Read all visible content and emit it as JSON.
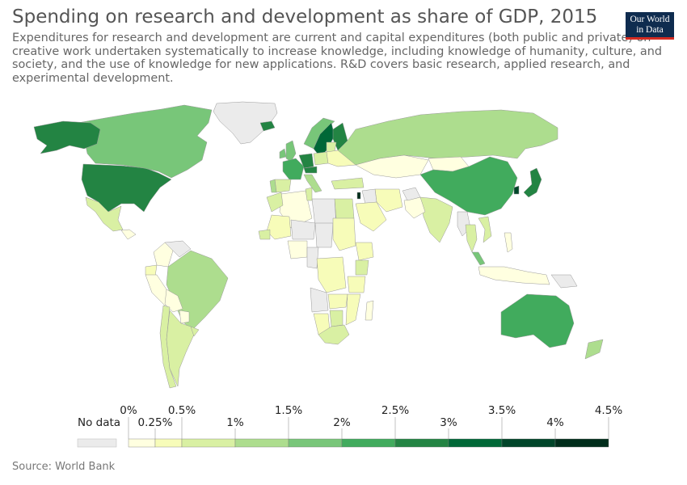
{
  "title": "Spending on research and development as share of GDP, 2015",
  "subtitle": "Expenditures for research and development are current and capital expenditures (both public and private) on creative work undertaken systematically to increase knowledge, including knowledge of humanity, culture, and society, and the use of knowledge for new applications. R&D covers basic research, applied research, and experimental development.",
  "logo": {
    "line1": "Our World",
    "line2": "in Data"
  },
  "source": "Source: World Bank",
  "colors": {
    "no_data": "#ebebeb",
    "scale": [
      "#ffffe0",
      "#f7fcb9",
      "#d9f0a3",
      "#addd8e",
      "#78c679",
      "#41ab5d",
      "#238443",
      "#006837",
      "#004529",
      "#002d1b"
    ],
    "borders": "#999999"
  },
  "legend": {
    "no_data_label": "No data",
    "breaks_top": [
      "0%",
      "0.5%",
      "1.5%",
      "2.5%",
      "3.5%",
      "4.5%"
    ],
    "breaks_bottom": [
      "0.25%",
      "1%",
      "2%",
      "3%",
      "4%"
    ],
    "bins": [
      "0–0.25%",
      "0.25–0.5%",
      "0.5–1%",
      "1–1.5%",
      "1.5–2%",
      "2–2.5%",
      "2.5–3%",
      "3–3.5%",
      "3.5–4%",
      "4–4.5%"
    ]
  },
  "chart_data": {
    "type": "choropleth",
    "variable": "R&D expenditure (% of GDP)",
    "year": 2015,
    "bin_edges": [
      0,
      0.25,
      0.5,
      1,
      1.5,
      2,
      2.5,
      3,
      3.5,
      4,
      4.5
    ],
    "regions": [
      {
        "name": "United States",
        "bin": 6
      },
      {
        "name": "Canada",
        "bin": 4
      },
      {
        "name": "Alaska (USA)",
        "bin": 6
      },
      {
        "name": "Greenland",
        "bin": -1
      },
      {
        "name": "Mexico",
        "bin": 2
      },
      {
        "name": "Guatemala",
        "bin": 0
      },
      {
        "name": "Colombia",
        "bin": 0
      },
      {
        "name": "Venezuela",
        "bin": -1
      },
      {
        "name": "Ecuador",
        "bin": 1
      },
      {
        "name": "Peru",
        "bin": 0
      },
      {
        "name": "Brazil",
        "bin": 3
      },
      {
        "name": "Bolivia",
        "bin": 0
      },
      {
        "name": "Paraguay",
        "bin": 0
      },
      {
        "name": "Chile",
        "bin": 2
      },
      {
        "name": "Argentina",
        "bin": 2
      },
      {
        "name": "Uruguay",
        "bin": 2
      },
      {
        "name": "Iceland",
        "bin": 6
      },
      {
        "name": "United Kingdom",
        "bin": 4
      },
      {
        "name": "Ireland",
        "bin": 4
      },
      {
        "name": "France",
        "bin": 5
      },
      {
        "name": "Spain",
        "bin": 2
      },
      {
        "name": "Portugal",
        "bin": 3
      },
      {
        "name": "Germany",
        "bin": 6
      },
      {
        "name": "Italy",
        "bin": 3
      },
      {
        "name": "Norway",
        "bin": 4
      },
      {
        "name": "Sweden",
        "bin": 7
      },
      {
        "name": "Finland",
        "bin": 6
      },
      {
        "name": "Poland",
        "bin": 2
      },
      {
        "name": "Baltic states",
        "bin": 2
      },
      {
        "name": "Ukraine/Belarus",
        "bin": 1
      },
      {
        "name": "Austria",
        "bin": 6
      },
      {
        "name": "Turkey",
        "bin": 2
      },
      {
        "name": "Russia",
        "bin": 3
      },
      {
        "name": "Kazakhstan",
        "bin": 0
      },
      {
        "name": "Mongolia",
        "bin": 0
      },
      {
        "name": "China",
        "bin": 5
      },
      {
        "name": "Japan",
        "bin": 6
      },
      {
        "name": "South Korea",
        "bin": 8
      },
      {
        "name": "India",
        "bin": 2
      },
      {
        "name": "Pakistan",
        "bin": 0
      },
      {
        "name": "Iran",
        "bin": 1
      },
      {
        "name": "Iraq",
        "bin": -1
      },
      {
        "name": "Saudi Arabia",
        "bin": 1
      },
      {
        "name": "Afghanistan",
        "bin": -1
      },
      {
        "name": "Myanmar",
        "bin": -1
      },
      {
        "name": "Thailand",
        "bin": 2
      },
      {
        "name": "Vietnam",
        "bin": 2
      },
      {
        "name": "Malaysia",
        "bin": 4
      },
      {
        "name": "Indonesia",
        "bin": 0
      },
      {
        "name": "Philippines",
        "bin": 0
      },
      {
        "name": "Papua New Guinea",
        "bin": -1
      },
      {
        "name": "Israel",
        "bin": 9
      },
      {
        "name": "Egypt",
        "bin": 2
      },
      {
        "name": "Libya",
        "bin": -1
      },
      {
        "name": "Algeria",
        "bin": 0
      },
      {
        "name": "Morocco",
        "bin": 2
      },
      {
        "name": "Tunisia",
        "bin": 2
      },
      {
        "name": "Mali",
        "bin": 1
      },
      {
        "name": "Niger",
        "bin": -1
      },
      {
        "name": "Chad",
        "bin": -1
      },
      {
        "name": "Sudan",
        "bin": 1
      },
      {
        "name": "Ethiopia",
        "bin": 1
      },
      {
        "name": "Senegal",
        "bin": 2
      },
      {
        "name": "Nigeria",
        "bin": 0
      },
      {
        "name": "Cameroon",
        "bin": -1
      },
      {
        "name": "DR Congo",
        "bin": 1
      },
      {
        "name": "Kenya",
        "bin": 2
      },
      {
        "name": "Tanzania",
        "bin": 1
      },
      {
        "name": "Angola",
        "bin": -1
      },
      {
        "name": "Zambia",
        "bin": 1
      },
      {
        "name": "Namibia",
        "bin": 1
      },
      {
        "name": "Botswana",
        "bin": 2
      },
      {
        "name": "Mozambique",
        "bin": 1
      },
      {
        "name": "South Africa",
        "bin": 2
      },
      {
        "name": "Madagascar",
        "bin": 0
      },
      {
        "name": "Australia",
        "bin": 5
      },
      {
        "name": "New Zealand",
        "bin": 3
      }
    ]
  }
}
